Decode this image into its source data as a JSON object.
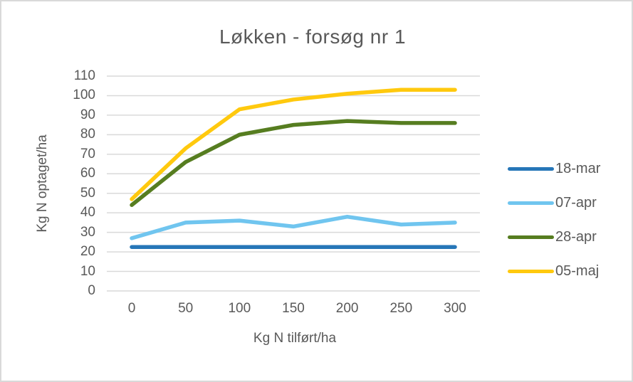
{
  "title": "Løkken - forsøg nr 1",
  "axes": {
    "y_title": "Kg N optaget/ha",
    "x_title": "Kg N tilført/ha"
  },
  "colors": {
    "text": "#595959",
    "gridline": "#D9D9D9",
    "frame_border": "#D9D9D9",
    "background": "#FFFFFF"
  },
  "legend": {
    "position": "right",
    "entries": [
      "18-mar",
      "07-apr",
      "28-apr",
      "05-maj"
    ]
  },
  "chart_data": {
    "type": "line",
    "title": "Løkken - forsøg nr 1",
    "xlabel": "Kg N tilført/ha",
    "ylabel": "Kg N optaget/ha",
    "x": [
      0,
      50,
      100,
      150,
      200,
      250,
      300
    ],
    "xticks": [
      0,
      50,
      100,
      150,
      200,
      250,
      300
    ],
    "yticks": [
      0,
      10,
      20,
      30,
      40,
      50,
      60,
      70,
      80,
      90,
      100,
      110
    ],
    "ylim": [
      0,
      110
    ],
    "xlim": [
      0,
      300
    ],
    "grid": "horizontal",
    "legend_position": "right",
    "series": [
      {
        "name": "18-mar",
        "color": "#2676B8",
        "values": [
          22.5,
          22.5,
          22.5,
          22.5,
          22.5,
          22.5,
          22.5
        ]
      },
      {
        "name": "07-apr",
        "color": "#70C5EF",
        "values": [
          27,
          35,
          36,
          33,
          38,
          34,
          35
        ]
      },
      {
        "name": "28-apr",
        "color": "#567D20",
        "values": [
          44,
          66,
          80,
          85,
          87,
          86,
          86
        ]
      },
      {
        "name": "05-maj",
        "color": "#FFC90E",
        "values": [
          47,
          73,
          93,
          98,
          101,
          103,
          103
        ]
      }
    ]
  }
}
